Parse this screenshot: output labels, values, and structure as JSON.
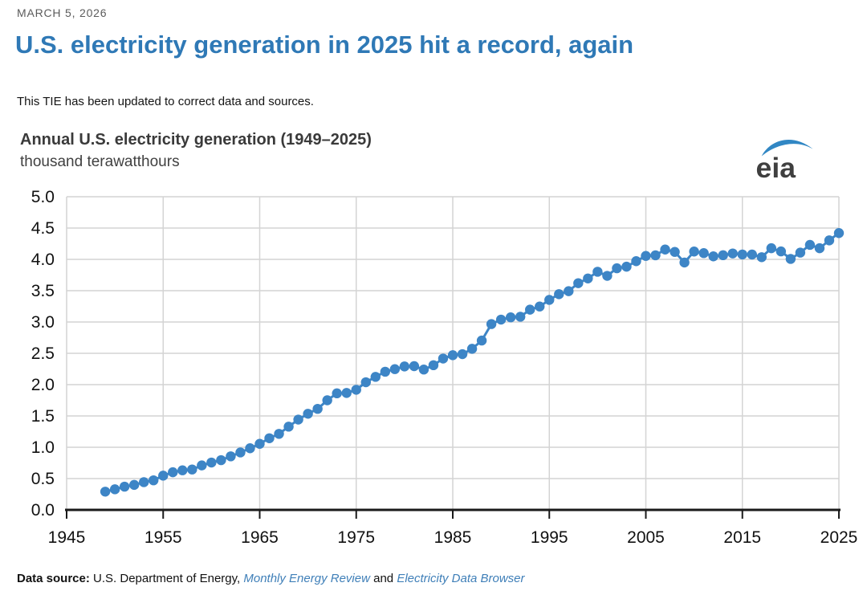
{
  "header": {
    "date": "MARCH 5, 2026",
    "title": "U.S. electricity generation in 2025 hit a record, again",
    "note": "This TIE has been updated to correct data and sources."
  },
  "logo": {
    "text": "eia"
  },
  "footer": {
    "label": "Data source:",
    "text_before": " U.S. Department of Energy, ",
    "link1": "Monthly Energy Review",
    "text_mid": " and ",
    "link2": "Electricity Data Browser"
  },
  "colors": {
    "title_blue": "#2f79b6",
    "marker_blue": "#3d85c6",
    "link_blue": "#3f7fb8",
    "grid_gray": "#d4d4d4",
    "axis_dark": "#1a1a1a"
  },
  "chart_data": {
    "type": "line",
    "title": "Annual U.S. electricity generation (1949–2025)",
    "subtitle": "thousand terawatthours",
    "xlabel": "",
    "ylabel": "thousand terawatthours",
    "xlim": [
      1945,
      2025
    ],
    "ylim": [
      0.0,
      5.0
    ],
    "x_ticks": [
      1945,
      1955,
      1965,
      1975,
      1985,
      1995,
      2005,
      2015,
      2025
    ],
    "y_ticks": [
      0.0,
      0.5,
      1.0,
      1.5,
      2.0,
      2.5,
      3.0,
      3.5,
      4.0,
      4.5,
      5.0
    ],
    "grid": true,
    "legend": "none",
    "marker": "circle",
    "x": [
      1949,
      1950,
      1951,
      1952,
      1953,
      1954,
      1955,
      1956,
      1957,
      1958,
      1959,
      1960,
      1961,
      1962,
      1963,
      1964,
      1965,
      1966,
      1967,
      1968,
      1969,
      1970,
      1971,
      1972,
      1973,
      1974,
      1975,
      1976,
      1977,
      1978,
      1979,
      1980,
      1981,
      1982,
      1983,
      1984,
      1985,
      1986,
      1987,
      1988,
      1989,
      1990,
      1991,
      1992,
      1993,
      1994,
      1995,
      1996,
      1997,
      1998,
      1999,
      2000,
      2001,
      2002,
      2003,
      2004,
      2005,
      2006,
      2007,
      2008,
      2009,
      2010,
      2011,
      2012,
      2013,
      2014,
      2015,
      2016,
      2017,
      2018,
      2019,
      2020,
      2021,
      2022,
      2023,
      2024,
      2025
    ],
    "series": [
      {
        "name": "Annual U.S. electricity generation",
        "values": [
          0.291,
          0.329,
          0.371,
          0.399,
          0.443,
          0.472,
          0.547,
          0.601,
          0.632,
          0.645,
          0.71,
          0.756,
          0.794,
          0.855,
          0.917,
          0.984,
          1.055,
          1.144,
          1.214,
          1.329,
          1.442,
          1.535,
          1.613,
          1.75,
          1.861,
          1.867,
          1.918,
          2.038,
          2.124,
          2.206,
          2.247,
          2.29,
          2.295,
          2.241,
          2.31,
          2.416,
          2.47,
          2.487,
          2.572,
          2.704,
          2.967,
          3.038,
          3.074,
          3.084,
          3.197,
          3.247,
          3.353,
          3.444,
          3.492,
          3.62,
          3.695,
          3.802,
          3.737,
          3.858,
          3.883,
          3.971,
          4.055,
          4.065,
          4.157,
          4.119,
          3.95,
          4.125,
          4.1,
          4.048,
          4.066,
          4.094,
          4.078,
          4.077,
          4.035,
          4.178,
          4.127,
          4.007,
          4.108,
          4.231,
          4.178,
          4.303,
          4.42
        ]
      }
    ]
  }
}
